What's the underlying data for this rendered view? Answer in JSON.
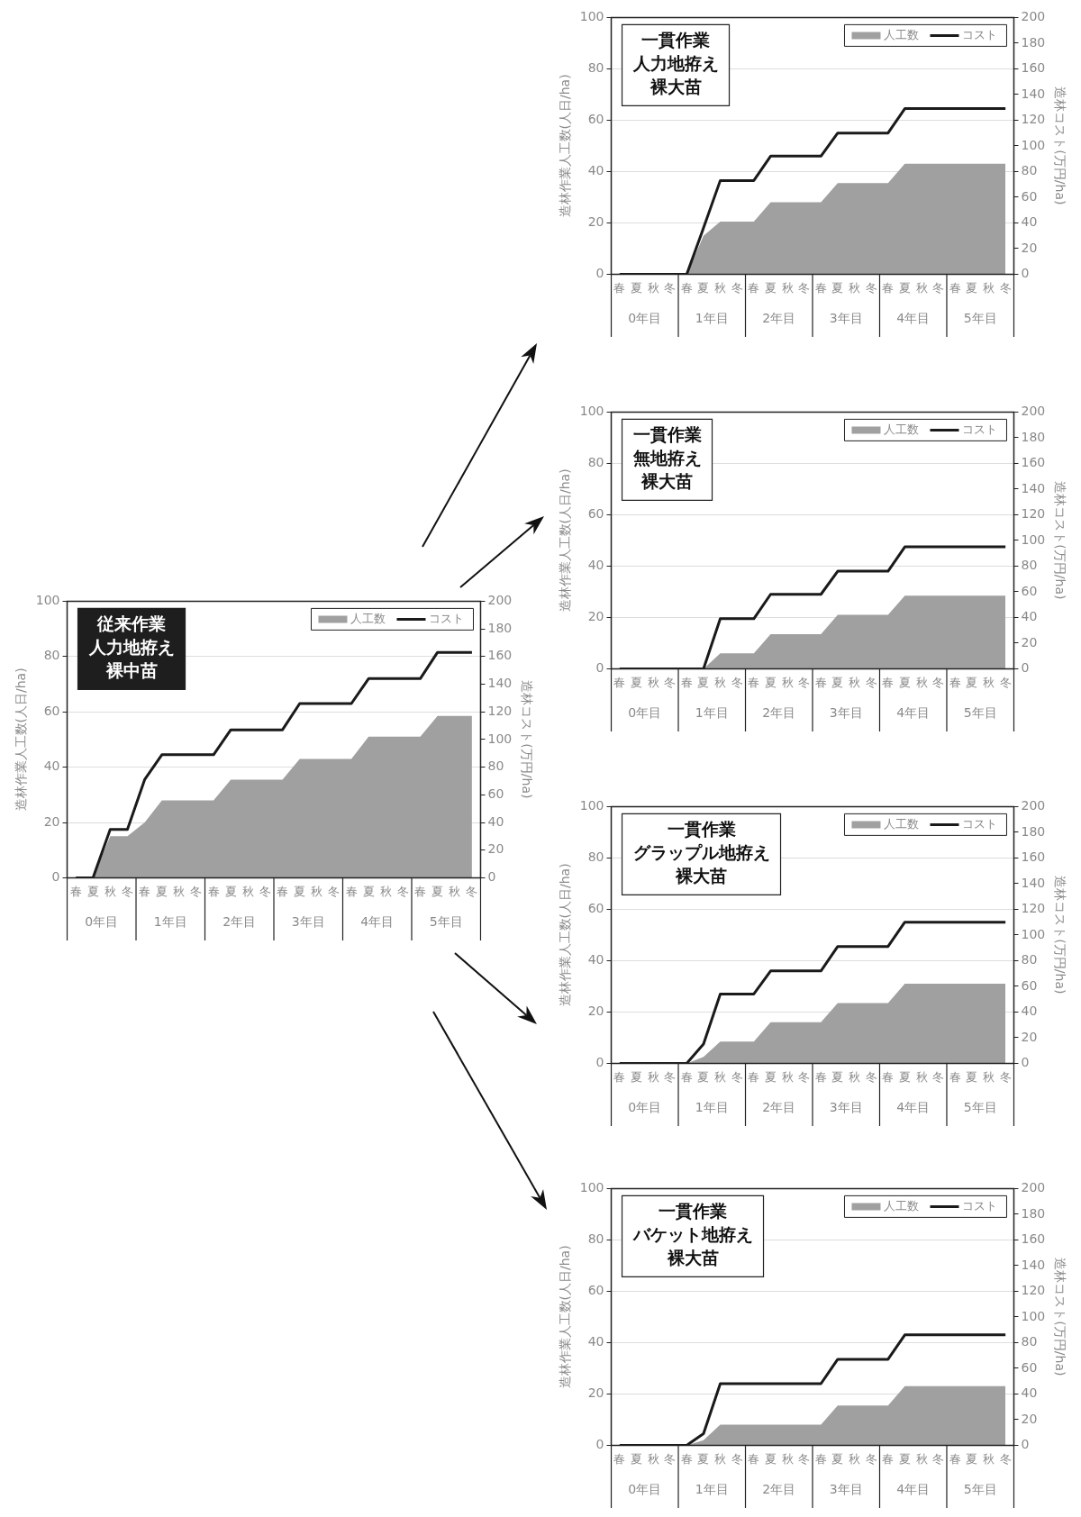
{
  "chart_data": [
    {
      "type": "area",
      "title": "従来作業",
      "subtitle": "人力地拵え",
      "ylabel": "造林作業人工数(人日/ha)",
      "y2label": "造林コスト(万円/ha)",
      "categories": [
        "春",
        "夏",
        "秋",
        "冬",
        "春",
        "夏",
        "秋",
        "冬",
        "春",
        "夏",
        "秋",
        "冬",
        "春",
        "夏",
        "秋",
        "冬",
        "春",
        "夏",
        "秋",
        "冬",
        "春",
        "夏",
        "秋",
        "冬"
      ],
      "annotations": [
        "裸中苗",
        "0年目",
        "1年目",
        "2年目",
        "3年目",
        "4年目",
        "5年目"
      ],
      "ylim": [
        0,
        100
      ],
      "yticks": [
        0,
        20,
        40,
        60,
        80,
        100
      ],
      "y2lim": [
        0,
        200
      ],
      "y2ticks": [
        0,
        20,
        40,
        60,
        80,
        100,
        120,
        140,
        160,
        180,
        200
      ],
      "grid": "y",
      "legend": "top right",
      "series": [
        {
          "name": "人工数",
          "color": "#a0a0a0",
          "values": [
            0,
            0,
            15,
            15,
            20,
            28,
            28,
            28,
            28,
            35.5,
            35.5,
            35.5,
            35.5,
            43,
            43,
            43,
            43,
            51,
            51,
            51,
            51,
            58.5,
            58.5,
            58.5
          ]
        },
        {
          "name": "コスト",
          "type": "line",
          "axis": "y2",
          "color": "#1a1a1a",
          "values": [
            0,
            0,
            35,
            35,
            71,
            89,
            89,
            89,
            89,
            107,
            107,
            107,
            107,
            126,
            126,
            126,
            126,
            144,
            144,
            144,
            144,
            163,
            163,
            163
          ]
        }
      ]
    },
    {
      "type": "area",
      "title": "一貫作業",
      "subtitle": "人力地拵え",
      "ylabel": "造林作業人工数(人日/ha)",
      "y2label": "造林コスト(万円/ha)",
      "categories": [
        "春",
        "夏",
        "秋",
        "冬",
        "春",
        "夏",
        "秋",
        "冬",
        "春",
        "夏",
        "秋",
        "冬",
        "春",
        "夏",
        "秋",
        "冬",
        "春",
        "夏",
        "秋",
        "冬",
        "春",
        "夏",
        "秋",
        "冬"
      ],
      "annotations": [
        "裸大苗",
        "0年目",
        "1年目",
        "2年目",
        "3年目",
        "4年目",
        "5年目"
      ],
      "ylim": [
        0,
        100
      ],
      "yticks": [
        0,
        20,
        40,
        60,
        80,
        100
      ],
      "y2lim": [
        0,
        200
      ],
      "y2ticks": [
        0,
        20,
        40,
        60,
        80,
        100,
        120,
        140,
        160,
        180,
        200
      ],
      "grid": "y",
      "legend": "top right",
      "series": [
        {
          "name": "人工数",
          "color": "#a0a0a0",
          "values": [
            0,
            0,
            0,
            0,
            0,
            15,
            20.5,
            20.5,
            20.5,
            28,
            28,
            28,
            28,
            35.5,
            35.5,
            35.5,
            35.5,
            43,
            43,
            43,
            43,
            43,
            43,
            43
          ]
        },
        {
          "name": "コスト",
          "type": "line",
          "axis": "y2",
          "color": "#1a1a1a",
          "values": [
            0,
            0,
            0,
            0,
            0,
            36,
            73,
            73,
            73,
            92,
            92,
            92,
            92,
            110,
            110,
            110,
            110,
            129,
            129,
            129,
            129,
            129,
            129,
            129
          ]
        }
      ]
    },
    {
      "type": "area",
      "title": "一貫作業",
      "subtitle": "無地拵え",
      "ylabel": "造林作業人工数(人日/ha)",
      "y2label": "造林コスト(万円/ha)",
      "categories": [
        "春",
        "夏",
        "秋",
        "冬",
        "春",
        "夏",
        "秋",
        "冬",
        "春",
        "夏",
        "秋",
        "冬",
        "春",
        "夏",
        "秋",
        "冬",
        "春",
        "夏",
        "秋",
        "冬",
        "春",
        "夏",
        "秋",
        "冬"
      ],
      "annotations": [
        "裸大苗",
        "0年目",
        "1年目",
        "2年目",
        "3年目",
        "4年目",
        "5年目"
      ],
      "ylim": [
        0,
        100
      ],
      "yticks": [
        0,
        20,
        40,
        60,
        80,
        100
      ],
      "y2lim": [
        0,
        200
      ],
      "y2ticks": [
        0,
        20,
        40,
        60,
        80,
        100,
        120,
        140,
        160,
        180,
        200
      ],
      "grid": "y",
      "legend": "top right",
      "series": [
        {
          "name": "人工数",
          "color": "#a0a0a0",
          "values": [
            0,
            0,
            0,
            0,
            0,
            0,
            6,
            6,
            6,
            13.5,
            13.5,
            13.5,
            13.5,
            21,
            21,
            21,
            21,
            28.5,
            28.5,
            28.5,
            28.5,
            28.5,
            28.5,
            28.5
          ]
        },
        {
          "name": "コスト",
          "type": "line",
          "axis": "y2",
          "color": "#1a1a1a",
          "values": [
            0,
            0,
            0,
            0,
            0,
            0,
            39,
            39,
            39,
            58,
            58,
            58,
            58,
            76,
            76,
            76,
            76,
            95,
            95,
            95,
            95,
            95,
            95,
            95
          ]
        }
      ]
    },
    {
      "type": "area",
      "title": "一貫作業",
      "subtitle": "グラップル地拵え",
      "ylabel": "造林作業人工数(人日/ha)",
      "y2label": "造林コスト(万円/ha)",
      "categories": [
        "春",
        "夏",
        "秋",
        "冬",
        "春",
        "夏",
        "秋",
        "冬",
        "春",
        "夏",
        "秋",
        "冬",
        "春",
        "夏",
        "秋",
        "冬",
        "春",
        "夏",
        "秋",
        "冬",
        "春",
        "夏",
        "秋",
        "冬"
      ],
      "annotations": [
        "裸大苗",
        "0年目",
        "1年目",
        "2年目",
        "3年目",
        "4年目",
        "5年目"
      ],
      "ylim": [
        0,
        100
      ],
      "yticks": [
        0,
        20,
        40,
        60,
        80,
        100
      ],
      "y2lim": [
        0,
        200
      ],
      "y2ticks": [
        0,
        20,
        40,
        60,
        80,
        100,
        120,
        140,
        160,
        180,
        200
      ],
      "grid": "y",
      "legend": "top right",
      "series": [
        {
          "name": "人工数",
          "color": "#a0a0a0",
          "values": [
            0,
            0,
            0,
            0,
            0,
            2.5,
            8.5,
            8.5,
            8.5,
            16,
            16,
            16,
            16,
            23.5,
            23.5,
            23.5,
            23.5,
            31,
            31,
            31,
            31,
            31,
            31,
            31
          ]
        },
        {
          "name": "コスト",
          "type": "line",
          "axis": "y2",
          "color": "#1a1a1a",
          "values": [
            0,
            0,
            0,
            0,
            0,
            15,
            54,
            54,
            54,
            72,
            72,
            72,
            72,
            91,
            91,
            91,
            91,
            110,
            110,
            110,
            110,
            110,
            110,
            110
          ]
        }
      ]
    },
    {
      "type": "area",
      "title": "一貫作業",
      "subtitle": "バケット地拵え",
      "ylabel": "造林作業人工数(人日/ha)",
      "y2label": "造林コスト(万円/ha)",
      "categories": [
        "春",
        "夏",
        "秋",
        "冬",
        "春",
        "夏",
        "秋",
        "冬",
        "春",
        "夏",
        "秋",
        "冬",
        "春",
        "夏",
        "秋",
        "冬",
        "春",
        "夏",
        "秋",
        "冬",
        "春",
        "夏",
        "秋",
        "冬"
      ],
      "annotations": [
        "裸大苗",
        "0年目",
        "1年目",
        "2年目",
        "3年目",
        "4年目",
        "5年目"
      ],
      "ylim": [
        0,
        100
      ],
      "yticks": [
        0,
        20,
        40,
        60,
        80,
        100
      ],
      "y2lim": [
        0,
        200
      ],
      "y2ticks": [
        0,
        20,
        40,
        60,
        80,
        100,
        120,
        140,
        160,
        180,
        200
      ],
      "grid": "y",
      "legend": "top right",
      "series": [
        {
          "name": "人工数",
          "color": "#a0a0a0",
          "values": [
            0,
            0,
            0,
            0,
            0,
            2,
            8,
            8,
            8,
            8,
            8,
            8,
            8,
            15.5,
            15.5,
            15.5,
            15.5,
            23,
            23,
            23,
            23,
            23,
            23,
            23
          ]
        },
        {
          "name": "コスト",
          "type": "line",
          "axis": "y2",
          "color": "#1a1a1a",
          "values": [
            0,
            0,
            0,
            0,
            0,
            9,
            48,
            48,
            48,
            48,
            48,
            48,
            48,
            67,
            67,
            67,
            67,
            86,
            86,
            86,
            86,
            86,
            86,
            86
          ]
        }
      ]
    }
  ]
}
